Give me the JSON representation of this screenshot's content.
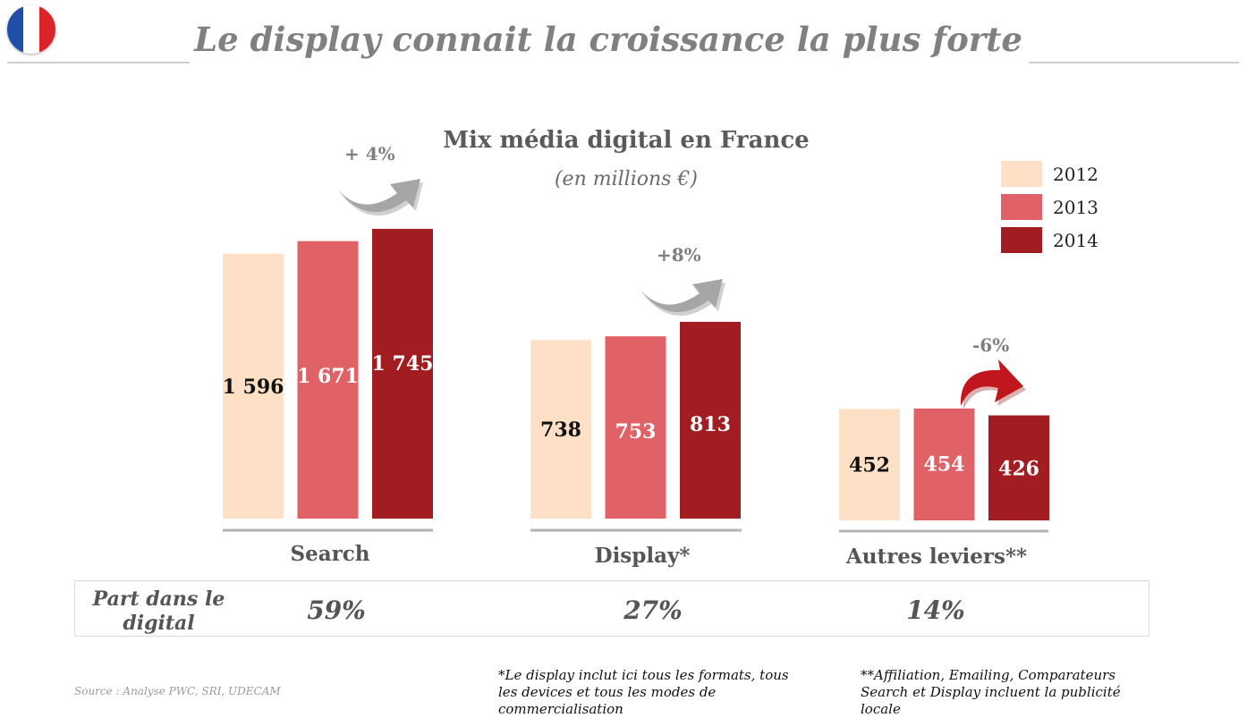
{
  "header": {
    "title": "Le display connait la croissance la plus forte",
    "flag_colors": [
      "#1f4fa8",
      "#ffffff",
      "#d9252a"
    ]
  },
  "chart_data": {
    "type": "bar",
    "title": "Mix média digital en France",
    "subtitle": "(en millions €)",
    "categories": [
      "Search",
      "Display*",
      "Autres leviers**"
    ],
    "series": [
      {
        "name": "2012",
        "color": "#fde0c5",
        "values": [
          1596,
          738,
          452
        ],
        "labels": [
          "1 596",
          "738",
          "452"
        ],
        "label_color": "#111111"
      },
      {
        "name": "2013",
        "color": "#e06266",
        "values": [
          1671,
          753,
          454
        ],
        "labels": [
          "1 671",
          "753",
          "454"
        ],
        "label_color": "#ffffff"
      },
      {
        "name": "2014",
        "color": "#a11d22",
        "values": [
          1745,
          813,
          426
        ],
        "labels": [
          "1 745",
          "813",
          "426"
        ],
        "label_color": "#ffffff"
      }
    ],
    "growth": [
      {
        "label": "+ 4%",
        "direction": "up",
        "arrow_color": "#a6a6a6"
      },
      {
        "label": "+8%",
        "direction": "up",
        "arrow_color": "#a6a6a6"
      },
      {
        "label": "-6%",
        "direction": "down",
        "arrow_color": "#c0161c"
      }
    ],
    "legend_position": "top-right",
    "grid": false
  },
  "share_table": {
    "label": "Part dans le digital",
    "values": [
      "59%",
      "27%",
      "14%"
    ]
  },
  "footnotes": {
    "display": "*Le display inclut ici tous les formats, tous les devices et tous les modes de commercialisation",
    "autres": "**Affiliation, Emailing, Comparateurs Search et Display incluent la publicité locale"
  },
  "source": "Source : Analyse PWC, SRI, UDECAM"
}
